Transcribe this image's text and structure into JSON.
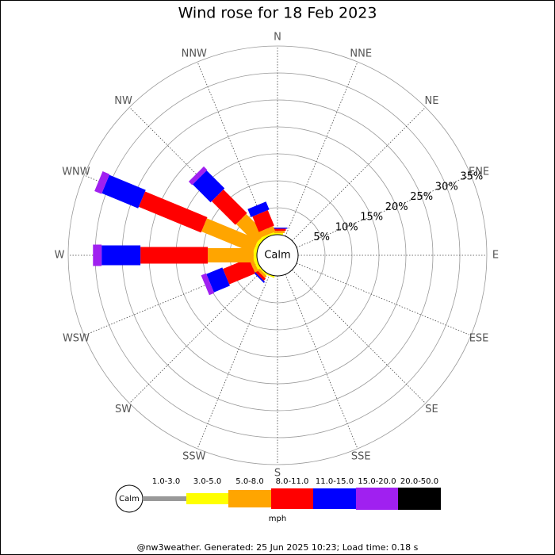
{
  "chart_data": {
    "type": "wind_rose",
    "title": "Wind rose for 18 Feb 2023",
    "categories": [
      "N",
      "NNE",
      "NE",
      "ENE",
      "E",
      "ESE",
      "SE",
      "SSE",
      "S",
      "SSW",
      "SW",
      "WSW",
      "W",
      "WNW",
      "NW",
      "NNW"
    ],
    "calm_label": "Calm",
    "units": "mph",
    "footer": "@nw3weather. Generated: 25 Jun 2025 10:23; Load time: 0.18 s",
    "rlim": [
      0,
      35
    ],
    "rticks": [
      {
        "value": 5,
        "label": "5%"
      },
      {
        "value": 10,
        "label": "10%"
      },
      {
        "value": 15,
        "label": "15%"
      },
      {
        "value": 20,
        "label": "20%"
      },
      {
        "value": 25,
        "label": "25%"
      },
      {
        "value": 30,
        "label": "30%"
      },
      {
        "value": 35,
        "label": "35%"
      }
    ],
    "series": [
      {
        "name": "1.0-3.0",
        "color": "#999999",
        "values": [
          0,
          0,
          0,
          0,
          0,
          0,
          0,
          0,
          0,
          0,
          0,
          0,
          0,
          0,
          0,
          0
        ]
      },
      {
        "name": "3.0-5.0",
        "color": "#ffff00",
        "values": [
          0.3,
          0,
          0,
          0,
          0,
          0,
          0,
          0,
          0,
          0.3,
          0.3,
          0.6,
          0.6,
          0.6,
          0.6,
          0.4
        ]
      },
      {
        "name": "5.0-8.0",
        "color": "#ffa500",
        "values": [
          0.4,
          0,
          0,
          0,
          0,
          0,
          0,
          0,
          0,
          0,
          0.5,
          0.7,
          8.5,
          10.3,
          5.1,
          1.1
        ]
      },
      {
        "name": "8.0-11.0",
        "color": "#ff0000",
        "values": [
          0.4,
          0,
          0,
          0,
          0,
          0,
          0,
          0,
          0,
          0,
          0.5,
          5.2,
          12.5,
          12.5,
          6.2,
          3.1
        ]
      },
      {
        "name": "11.0-15.0",
        "color": "#0000ff",
        "values": [
          0.2,
          0,
          0,
          0,
          0,
          0,
          0,
          0,
          0,
          0,
          0.3,
          3.2,
          7.2,
          7.3,
          4.7,
          1.6
        ]
      },
      {
        "name": "15.0-20.0",
        "color": "#a020f0",
        "values": [
          0,
          0,
          0,
          0,
          0,
          0,
          0,
          0,
          0,
          0,
          0,
          1.0,
          1.6,
          1.4,
          0.9,
          0
        ]
      },
      {
        "name": "20.0-50.0",
        "color": "#000000",
        "values": [
          0,
          0,
          0,
          0,
          0,
          0,
          0,
          0,
          0,
          0,
          0,
          0,
          0,
          0,
          0,
          0
        ]
      }
    ]
  }
}
